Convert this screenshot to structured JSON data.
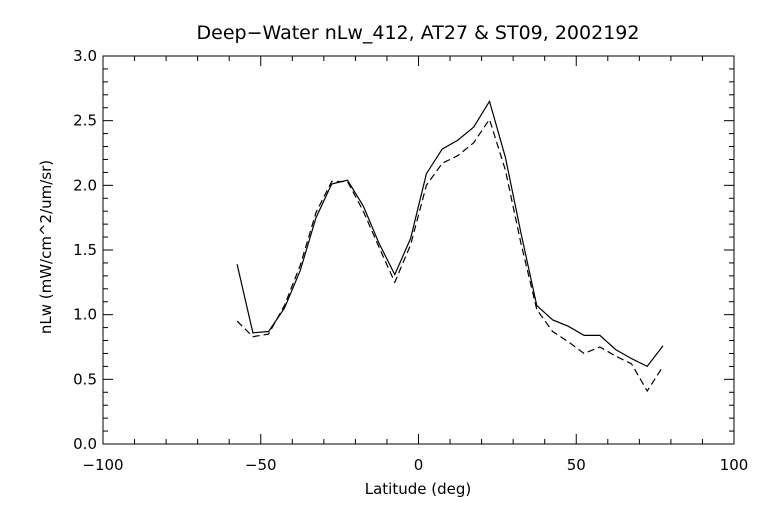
{
  "chart_data": {
    "type": "line",
    "title": "Deep−Water nLw_412, AT27 & ST09, 2002192",
    "xlabel": "Latitude (deg)",
    "ylabel": "nLw (mW/cm^2/um/sr)",
    "xlim": [
      -100,
      100
    ],
    "ylim": [
      0.0,
      3.0
    ],
    "xticks": [
      -100,
      -50,
      0,
      50,
      100
    ],
    "xtick_labels": [
      "−100",
      "−50",
      "0",
      "50",
      "100"
    ],
    "yticks": [
      0.0,
      0.5,
      1.0,
      1.5,
      2.0,
      2.5,
      3.0
    ],
    "ytick_labels": [
      "0.0",
      "0.5",
      "1.0",
      "1.5",
      "2.0",
      "2.5",
      "3.0"
    ],
    "x_minor_step": 10,
    "y_minor_step": 0.1,
    "grid": false,
    "legend": "none",
    "colors": {
      "line": "#000000",
      "axes": "#000000",
      "background": "#ffffff"
    },
    "series": [
      {
        "style": "solid",
        "x": [
          -57.5,
          -52.5,
          -47.5,
          -42.5,
          -37.5,
          -32.5,
          -27.5,
          -22.5,
          -17.5,
          -12.5,
          -7.5,
          -2.5,
          2.5,
          7.5,
          12.5,
          17.5,
          22.5,
          27.5,
          32.5,
          37.5,
          42.5,
          47.5,
          52.5,
          57.5,
          62.5,
          67.5,
          72.5,
          77.5
        ],
        "y": [
          1.39,
          0.86,
          0.87,
          1.05,
          1.34,
          1.75,
          2.01,
          2.04,
          1.84,
          1.55,
          1.31,
          1.59,
          2.09,
          2.28,
          2.35,
          2.45,
          2.65,
          2.22,
          1.63,
          1.07,
          0.96,
          0.91,
          0.84,
          0.84,
          0.73,
          0.66,
          0.6,
          0.76
        ]
      },
      {
        "style": "dashed",
        "x": [
          -57.5,
          -52.5,
          -47.5,
          -42.5,
          -37.5,
          -32.5,
          -27.5,
          -22.5,
          -17.5,
          -12.5,
          -7.5,
          -2.5,
          2.5,
          7.5,
          12.5,
          17.5,
          22.5,
          27.5,
          32.5,
          37.5,
          42.5,
          47.5,
          52.5,
          57.5,
          62.5,
          67.5,
          72.5,
          77.5
        ],
        "y": [
          0.95,
          0.83,
          0.85,
          1.07,
          1.38,
          1.79,
          2.03,
          2.03,
          1.8,
          1.52,
          1.25,
          1.54,
          2.0,
          2.17,
          2.23,
          2.33,
          2.51,
          2.12,
          1.55,
          1.04,
          0.87,
          0.79,
          0.7,
          0.75,
          0.68,
          0.62,
          0.41,
          0.6
        ]
      }
    ]
  }
}
